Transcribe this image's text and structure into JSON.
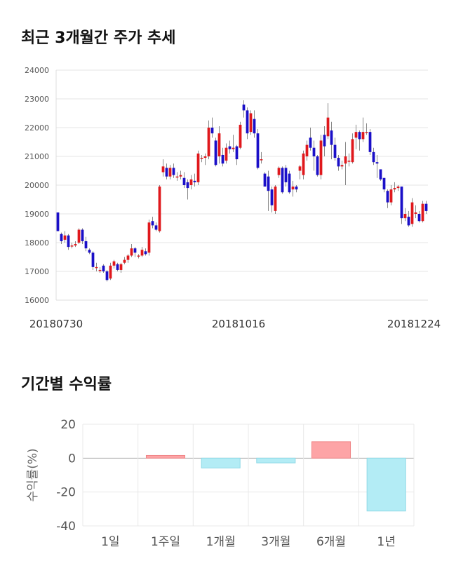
{
  "sections": {
    "price_title": "최근 3개월간 주가 추세",
    "returns_title": "기간별 수익률"
  },
  "chart_data": [
    {
      "type": "candlestick",
      "title": "최근 3개월간 주가 추세",
      "ylim": [
        16000,
        24000
      ],
      "yticks": [
        16000,
        17000,
        18000,
        19000,
        20000,
        21000,
        22000,
        23000,
        24000
      ],
      "xtick_labels": [
        "20180730",
        "20181016",
        "20181224"
      ],
      "grid": true,
      "colors": {
        "up": "#e0181c",
        "down": "#1a0fc8",
        "wick": "#888888"
      },
      "candles": [
        [
          19050,
          18400,
          19050,
          18400
        ],
        [
          18300,
          18050,
          18350,
          17950
        ],
        [
          18100,
          18250,
          18400,
          18000
        ],
        [
          18250,
          17850,
          18300,
          17750
        ],
        [
          17900,
          17900,
          18000,
          17800
        ],
        [
          17900,
          17950,
          18050,
          17850
        ],
        [
          18000,
          18450,
          18500,
          17950
        ],
        [
          18450,
          18050,
          18500,
          17950
        ],
        [
          18050,
          17800,
          18200,
          17700
        ],
        [
          17750,
          17650,
          17800,
          17600
        ],
        [
          17650,
          17150,
          17700,
          17050
        ],
        [
          17150,
          17150,
          17300,
          17000
        ],
        [
          17050,
          17050,
          17150,
          16950
        ],
        [
          17200,
          17000,
          17250,
          16950
        ],
        [
          17000,
          16700,
          17050,
          16650
        ],
        [
          16750,
          17200,
          17300,
          16700
        ],
        [
          17200,
          17350,
          17400,
          17100
        ],
        [
          17250,
          17050,
          17300,
          17000
        ],
        [
          17050,
          17250,
          17300,
          16950
        ],
        [
          17300,
          17400,
          17500,
          17250
        ],
        [
          17400,
          17550,
          17600,
          17300
        ],
        [
          17550,
          17800,
          17950,
          17500
        ],
        [
          17800,
          17650,
          17850,
          17500
        ],
        [
          17550,
          17550,
          17600,
          17450
        ],
        [
          17550,
          17750,
          17850,
          17500
        ],
        [
          17700,
          17600,
          17800,
          17550
        ],
        [
          17650,
          18700,
          18800,
          17550
        ],
        [
          18750,
          18600,
          18900,
          18500
        ],
        [
          18600,
          18450,
          18700,
          18400
        ],
        [
          18400,
          19950,
          20000,
          18350
        ],
        [
          20450,
          20650,
          20900,
          20300
        ],
        [
          20600,
          20300,
          20750,
          20200
        ],
        [
          20300,
          20600,
          20700,
          20200
        ],
        [
          20600,
          20350,
          20750,
          20250
        ],
        [
          20300,
          20300,
          20450,
          20150
        ],
        [
          20300,
          20350,
          20500,
          20200
        ],
        [
          20250,
          20000,
          20450,
          19900
        ],
        [
          20100,
          19900,
          20200,
          19500
        ],
        [
          20000,
          20200,
          20350,
          19850
        ],
        [
          20150,
          20100,
          20400,
          19950
        ],
        [
          20100,
          21100,
          21200,
          20000
        ],
        [
          20950,
          20950,
          21050,
          20800
        ],
        [
          20950,
          21000,
          21100,
          20700
        ],
        [
          21000,
          22000,
          22250,
          20900
        ],
        [
          22000,
          21800,
          22350,
          21650
        ],
        [
          21550,
          20700,
          21650,
          20650
        ],
        [
          21000,
          21800,
          22050,
          20750
        ],
        [
          21050,
          20750,
          21300,
          20650
        ],
        [
          20850,
          21300,
          21450,
          20750
        ],
        [
          21350,
          21250,
          21550,
          21100
        ],
        [
          21250,
          21300,
          21750,
          21150
        ],
        [
          21350,
          20900,
          21400,
          20700
        ],
        [
          21300,
          22100,
          22200,
          21250
        ],
        [
          22800,
          22600,
          22950,
          22350
        ],
        [
          22600,
          21800,
          22700,
          21600
        ],
        [
          21850,
          22500,
          22600,
          21750
        ],
        [
          22300,
          21800,
          22600,
          21650
        ],
        [
          21800,
          20600,
          21950,
          20550
        ],
        [
          20900,
          20900,
          21150,
          20750
        ],
        [
          20400,
          19950,
          20450,
          19950
        ],
        [
          20300,
          19800,
          20500,
          19100
        ],
        [
          19850,
          19300,
          19950,
          19050
        ],
        [
          19100,
          19950,
          20000,
          19000
        ],
        [
          20350,
          20600,
          20650,
          20250
        ],
        [
          20600,
          19750,
          20650,
          19700
        ],
        [
          20600,
          20100,
          20700,
          19950
        ],
        [
          20400,
          19750,
          20500,
          19700
        ],
        [
          19850,
          19950,
          20150,
          19600
        ],
        [
          19950,
          19850,
          20000,
          19750
        ],
        [
          20500,
          20650,
          20700,
          20200
        ],
        [
          20350,
          21100,
          21200,
          20200
        ],
        [
          21000,
          21400,
          21550,
          20850
        ],
        [
          21650,
          21300,
          22000,
          21200
        ],
        [
          21300,
          21000,
          21550,
          20500
        ],
        [
          21000,
          20350,
          21050,
          20300
        ],
        [
          20350,
          21550,
          21750,
          20200
        ],
        [
          21750,
          21350,
          22050,
          21000
        ],
        [
          21700,
          22350,
          22850,
          21600
        ],
        [
          21900,
          21400,
          22200,
          20900
        ],
        [
          21400,
          20950,
          21650,
          20850
        ],
        [
          20950,
          20650,
          21050,
          20500
        ],
        [
          20650,
          20700,
          20850,
          20550
        ],
        [
          20750,
          21000,
          21500,
          20000
        ],
        [
          20850,
          20850,
          21100,
          20650
        ],
        [
          20800,
          21600,
          21800,
          20750
        ],
        [
          21650,
          21850,
          22100,
          21250
        ],
        [
          21850,
          21600,
          21900,
          21200
        ],
        [
          21600,
          21850,
          22350,
          21500
        ],
        [
          21850,
          21850,
          22150,
          21750
        ],
        [
          21850,
          21150,
          21950,
          21050
        ],
        [
          21150,
          20800,
          21300,
          20700
        ],
        [
          20800,
          20750,
          21050,
          20250
        ],
        [
          20550,
          20200,
          20550,
          20150
        ],
        [
          20250,
          19850,
          20250,
          19750
        ],
        [
          19800,
          19400,
          19850,
          19200
        ],
        [
          19400,
          19850,
          20000,
          19300
        ],
        [
          19850,
          19900,
          20100,
          19750
        ],
        [
          19900,
          19950,
          20000,
          19800
        ],
        [
          19950,
          18850,
          19950,
          18650
        ],
        [
          18850,
          19000,
          19200,
          18750
        ],
        [
          18900,
          18600,
          19100,
          18550
        ],
        [
          18650,
          19400,
          19550,
          18550
        ],
        [
          19000,
          19050,
          19300,
          18850
        ],
        [
          19000,
          18750,
          19100,
          18700
        ],
        [
          18750,
          19350,
          19450,
          18700
        ],
        [
          19350,
          19100,
          19450,
          19000
        ]
      ]
    },
    {
      "type": "bar",
      "title": "기간별 수익률",
      "ylabel": "수익률(%)",
      "categories": [
        "1일",
        "1주일",
        "1개월",
        "3개월",
        "6개월",
        "1년"
      ],
      "values": [
        0.0,
        1.6,
        -5.8,
        -2.8,
        9.7,
        -31.2
      ],
      "ylim": [
        -40,
        20
      ],
      "yticks": [
        20,
        0,
        -20,
        -40
      ],
      "grid": true,
      "colors": {
        "positive_fill": "#fda4a6",
        "positive_stroke": "#f08486",
        "negative_fill": "#b3ecf5",
        "negative_stroke": "#8fd9e6"
      }
    }
  ]
}
